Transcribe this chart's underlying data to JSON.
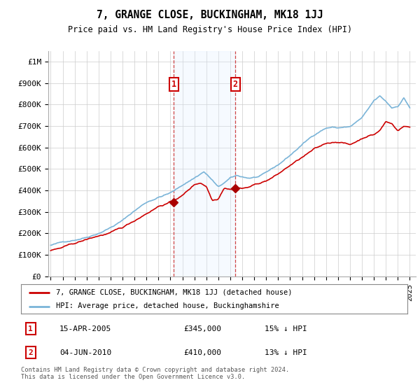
{
  "title": "7, GRANGE CLOSE, BUCKINGHAM, MK18 1JJ",
  "subtitle": "Price paid vs. HM Land Registry's House Price Index (HPI)",
  "ylabel_ticks": [
    "£0",
    "£100K",
    "£200K",
    "£300K",
    "£400K",
    "£500K",
    "£600K",
    "£700K",
    "£800K",
    "£900K",
    "£1M"
  ],
  "ytick_values": [
    0,
    100000,
    200000,
    300000,
    400000,
    500000,
    600000,
    700000,
    800000,
    900000,
    1000000
  ],
  "ylim": [
    0,
    1050000
  ],
  "xlim_start": 1994.8,
  "xlim_end": 2025.5,
  "sale1_date": 2005.29,
  "sale1_price": 345000,
  "sale1_label": "1",
  "sale2_date": 2010.42,
  "sale2_price": 410000,
  "sale2_label": "2",
  "hpi_color": "#7ab4d8",
  "price_color": "#cc0000",
  "sale_marker_color": "#aa0000",
  "shade_color": "#ddeeff",
  "legend_line1": "7, GRANGE CLOSE, BUCKINGHAM, MK18 1JJ (detached house)",
  "legend_line2": "HPI: Average price, detached house, Buckinghamshire",
  "table_row1": [
    "1",
    "15-APR-2005",
    "£345,000",
    "15% ↓ HPI"
  ],
  "table_row2": [
    "2",
    "04-JUN-2010",
    "£410,000",
    "13% ↓ HPI"
  ],
  "footnote": "Contains HM Land Registry data © Crown copyright and database right 2024.\nThis data is licensed under the Open Government Licence v3.0.",
  "background_color": "#ffffff",
  "grid_color": "#cccccc"
}
